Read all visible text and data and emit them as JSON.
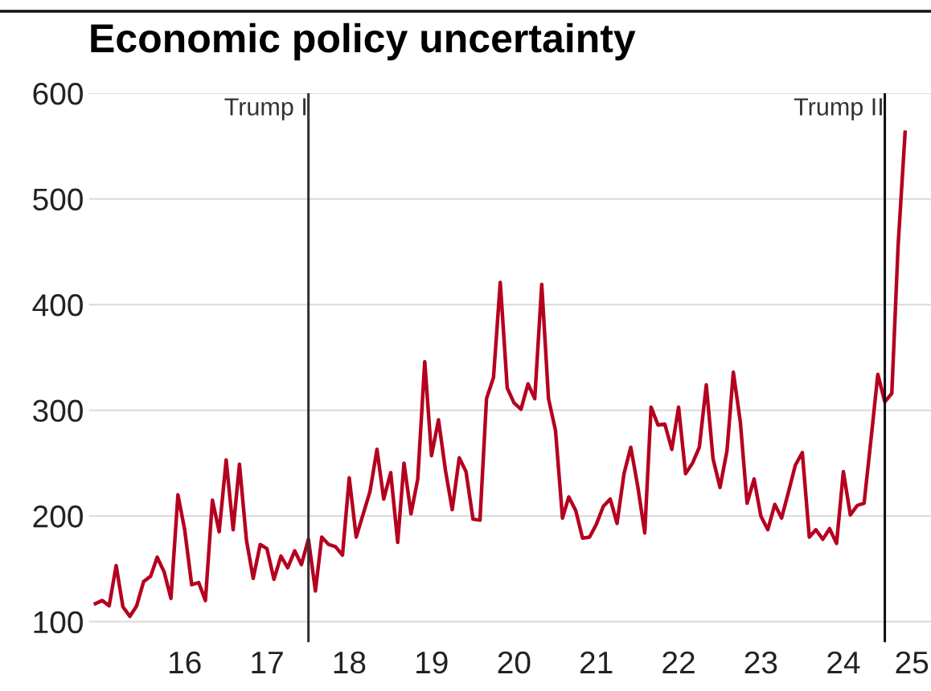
{
  "chart_data": {
    "type": "line",
    "title": "Economic policy uncertainty",
    "x": [
      "2015-06",
      "2015-07",
      "2015-08",
      "2015-09",
      "2015-10",
      "2015-11",
      "2015-12",
      "2016-01",
      "2016-02",
      "2016-03",
      "2016-04",
      "2016-05",
      "2016-06",
      "2016-07",
      "2016-08",
      "2016-09",
      "2016-10",
      "2016-11",
      "2016-12",
      "2017-01",
      "2017-02",
      "2017-03",
      "2017-04",
      "2017-05",
      "2017-06",
      "2017-07",
      "2017-08",
      "2017-09",
      "2017-10",
      "2017-11",
      "2017-12",
      "2018-01",
      "2018-02",
      "2018-03",
      "2018-04",
      "2018-05",
      "2018-06",
      "2018-07",
      "2018-08",
      "2018-09",
      "2018-10",
      "2018-11",
      "2018-12",
      "2019-01",
      "2019-02",
      "2019-03",
      "2019-04",
      "2019-05",
      "2019-06",
      "2019-07",
      "2019-08",
      "2019-09",
      "2019-10",
      "2019-11",
      "2019-12",
      "2020-01",
      "2020-02",
      "2020-03",
      "2020-04",
      "2020-05",
      "2020-06",
      "2020-07",
      "2020-08",
      "2020-09",
      "2020-10",
      "2020-11",
      "2020-12",
      "2021-01",
      "2021-02",
      "2021-03",
      "2021-04",
      "2021-05",
      "2021-06",
      "2021-07",
      "2021-08",
      "2021-09",
      "2021-10",
      "2021-11",
      "2021-12",
      "2022-01",
      "2022-02",
      "2022-03",
      "2022-04",
      "2022-05",
      "2022-06",
      "2022-07",
      "2022-08",
      "2022-09",
      "2022-10",
      "2022-11",
      "2022-12",
      "2023-01",
      "2023-02",
      "2023-03",
      "2023-04",
      "2023-05",
      "2023-06",
      "2023-07",
      "2023-08",
      "2023-09",
      "2023-10",
      "2023-11",
      "2023-12",
      "2024-01",
      "2024-02",
      "2024-03",
      "2024-04",
      "2024-05",
      "2024-06",
      "2024-07",
      "2024-08",
      "2024-09",
      "2024-10",
      "2024-11",
      "2024-12",
      "2025-01",
      "2025-02",
      "2025-03",
      "2025-04"
    ],
    "series": [
      {
        "color": "#b5001f",
        "values": [
          117,
          120,
          115,
          153,
          114,
          105,
          115,
          138,
          143,
          161,
          147,
          122,
          220,
          187,
          135,
          137,
          120,
          215,
          185,
          253,
          187,
          249,
          177,
          141,
          173,
          169,
          140,
          162,
          151,
          167,
          154,
          178,
          129,
          180,
          173,
          171,
          163,
          236,
          180,
          202,
          223,
          263,
          216,
          241,
          175,
          250,
          202,
          235,
          346,
          257,
          291,
          243,
          206,
          255,
          242,
          197,
          196,
          311,
          331,
          421,
          321,
          307,
          301,
          325,
          311,
          419,
          311,
          281,
          198,
          218,
          205,
          179,
          180,
          192,
          209,
          216,
          193,
          240,
          265,
          228,
          184,
          303,
          286,
          287,
          263,
          303,
          240,
          250,
          265,
          324,
          254,
          227,
          262,
          336,
          289,
          212,
          235,
          200,
          187,
          211,
          198,
          223,
          248,
          260,
          180,
          187,
          178,
          188,
          174,
          242,
          201,
          210,
          212,
          273,
          334,
          308,
          316,
          456,
          563
        ]
      }
    ],
    "xlim": [
      "2015-05",
      "2025-08"
    ],
    "xticks": [
      {
        "value": "2016-07",
        "label": "16"
      },
      {
        "value": "2017-07",
        "label": "17"
      },
      {
        "value": "2018-07",
        "label": "18"
      },
      {
        "value": "2019-07",
        "label": "19"
      },
      {
        "value": "2020-07",
        "label": "20"
      },
      {
        "value": "2021-07",
        "label": "21"
      },
      {
        "value": "2022-07",
        "label": "22"
      },
      {
        "value": "2023-07",
        "label": "23"
      },
      {
        "value": "2024-07",
        "label": "24"
      },
      {
        "value": "2025-05",
        "label": "25"
      }
    ],
    "ylim": [
      80,
      600
    ],
    "yticks": [
      100,
      200,
      300,
      400,
      500,
      600
    ],
    "grid": "y",
    "legend": false,
    "ref_lines": [
      {
        "axis": "x",
        "value": "2018-01",
        "label": "Trump I",
        "color": "#333333"
      },
      {
        "axis": "x",
        "value": "2025-01",
        "label": "Trump II",
        "color": "#111111"
      }
    ]
  }
}
